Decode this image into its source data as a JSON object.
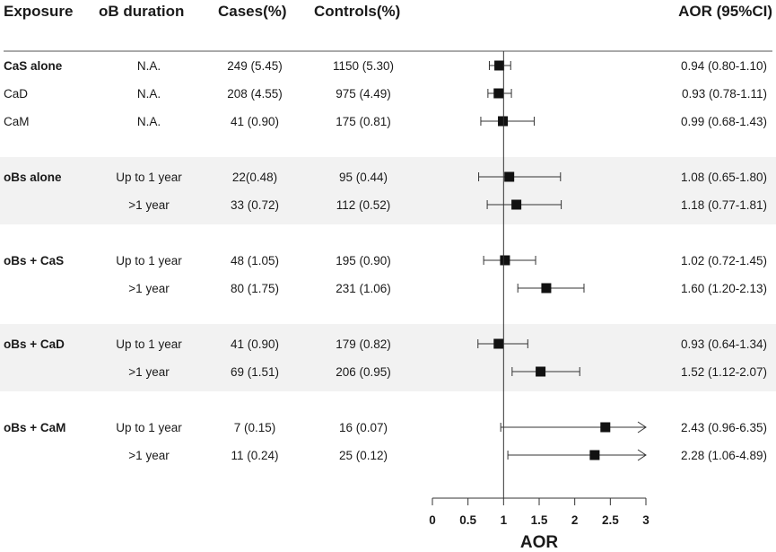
{
  "chart_data": {
    "type": "forest",
    "headers": {
      "exposure": "Exposure",
      "duration": "oB duration",
      "cases": "Cases(%)",
      "controls": "Controls(%)",
      "aor": "AOR (95%CI)"
    },
    "xlabel": "AOR",
    "xlim": [
      0,
      3
    ],
    "ticks": [
      0,
      0.5,
      1,
      1.5,
      2,
      2.5,
      3
    ],
    "tick_labels": [
      "0",
      "0.5",
      "1",
      "1.5",
      "2",
      "2.5",
      "3"
    ],
    "reference_line": 1,
    "groups": [
      {
        "shaded": false,
        "rows": [
          {
            "exposure": "CaS alone",
            "exposure_bold": true,
            "duration": "N.A.",
            "cases": "249 (5.45)",
            "controls": "1150 (5.30)",
            "aor_text": "0.94 (0.80-1.10)",
            "aor": 0.94,
            "lo": 0.8,
            "hi": 1.1,
            "arrow": false
          },
          {
            "exposure": "CaD",
            "exposure_bold": false,
            "duration": "N.A.",
            "cases": "208 (4.55)",
            "controls": "975 (4.49)",
            "aor_text": "0.93 (0.78-1.11)",
            "aor": 0.93,
            "lo": 0.78,
            "hi": 1.11,
            "arrow": false
          },
          {
            "exposure": "CaM",
            "exposure_bold": false,
            "duration": "N.A.",
            "cases": "41 (0.90)",
            "controls": "175 (0.81)",
            "aor_text": "0.99 (0.68-1.43)",
            "aor": 0.99,
            "lo": 0.68,
            "hi": 1.43,
            "arrow": false
          }
        ]
      },
      {
        "shaded": true,
        "rows": [
          {
            "exposure": "oBs alone",
            "exposure_bold": true,
            "duration": "Up to 1 year",
            "cases": "22(0.48)",
            "controls": "95 (0.44)",
            "aor_text": "1.08 (0.65-1.80)",
            "aor": 1.08,
            "lo": 0.65,
            "hi": 1.8,
            "arrow": false
          },
          {
            "exposure": "",
            "exposure_bold": false,
            "duration": ">1 year",
            "cases": "33 (0.72)",
            "controls": "112 (0.52)",
            "aor_text": "1.18 (0.77-1.81)",
            "aor": 1.18,
            "lo": 0.77,
            "hi": 1.81,
            "arrow": false
          }
        ]
      },
      {
        "shaded": false,
        "rows": [
          {
            "exposure": "oBs + CaS",
            "exposure_bold": true,
            "duration": "Up to 1 year",
            "cases": "48 (1.05)",
            "controls": "195 (0.90)",
            "aor_text": "1.02 (0.72-1.45)",
            "aor": 1.02,
            "lo": 0.72,
            "hi": 1.45,
            "arrow": false
          },
          {
            "exposure": "",
            "exposure_bold": false,
            "duration": ">1 year",
            "cases": "80 (1.75)",
            "controls": "231 (1.06)",
            "aor_text": "1.60 (1.20-2.13)",
            "aor": 1.6,
            "lo": 1.2,
            "hi": 2.13,
            "arrow": false
          }
        ]
      },
      {
        "shaded": true,
        "rows": [
          {
            "exposure": "oBs + CaD",
            "exposure_bold": true,
            "duration": "Up to 1 year",
            "cases": "41 (0.90)",
            "controls": "179 (0.82)",
            "aor_text": "0.93 (0.64-1.34)",
            "aor": 0.93,
            "lo": 0.64,
            "hi": 1.34,
            "arrow": false
          },
          {
            "exposure": "",
            "exposure_bold": false,
            "duration": ">1 year",
            "cases": "69 (1.51)",
            "controls": "206 (0.95)",
            "aor_text": "1.52 (1.12-2.07)",
            "aor": 1.52,
            "lo": 1.12,
            "hi": 2.07,
            "arrow": false
          }
        ]
      },
      {
        "shaded": false,
        "rows": [
          {
            "exposure": "oBs + CaM",
            "exposure_bold": true,
            "duration": "Up to 1 year",
            "cases": "7 (0.15)",
            "controls": "16 (0.07)",
            "aor_text": "2.43 (0.96-6.35)",
            "aor": 2.43,
            "lo": 0.96,
            "hi": 6.35,
            "arrow": true
          },
          {
            "exposure": "",
            "exposure_bold": false,
            "duration": ">1 year",
            "cases": "11 (0.24)",
            "controls": "25 (0.12)",
            "aor_text": "2.28 (1.06-4.89)",
            "aor": 2.28,
            "lo": 1.06,
            "hi": 4.89,
            "arrow": true
          }
        ]
      }
    ]
  }
}
